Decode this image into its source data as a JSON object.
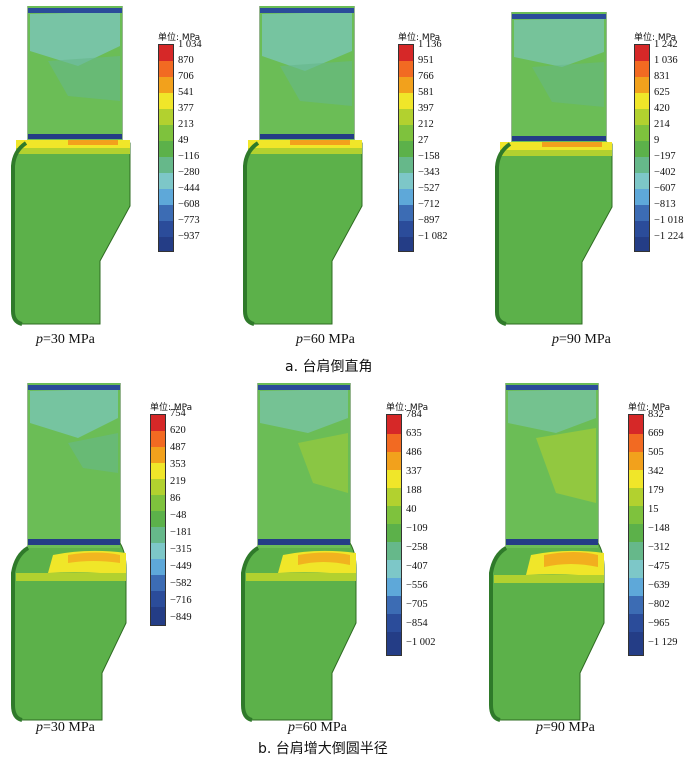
{
  "colors": [
    "#d62828",
    "#f26a22",
    "#f2a11c",
    "#f0e629",
    "#b2d12f",
    "#7ec23d",
    "#5cb14a",
    "#66b88a",
    "#7dc7c8",
    "#5ea8d9",
    "#3c6cb4",
    "#2b4c9a",
    "#243d86"
  ],
  "unit_label": "单位: MPa",
  "rows": [
    {
      "caption": "a. 台肩倒直角",
      "shape": "chamfer",
      "panels": [
        {
          "p_var": "p",
          "p_value": "=30 MPa",
          "ticks": [
            "1 034",
            "870",
            "706",
            "541",
            "377",
            "213",
            "49",
            "−116",
            "−280",
            "−444",
            "−608",
            "−773",
            "−937"
          ]
        },
        {
          "p_var": "p",
          "p_value": "=60 MPa",
          "ticks": [
            "1 136",
            "951",
            "766",
            "581",
            "397",
            "212",
            "27",
            "−158",
            "−343",
            "−527",
            "−712",
            "−897",
            "−1 082"
          ]
        },
        {
          "p_var": "p",
          "p_value": "=90 MPa",
          "ticks": [
            "1 242",
            "1 036",
            "831",
            "625",
            "420",
            "214",
            "9",
            "−197",
            "−402",
            "−607",
            "−813",
            "−1 018",
            "−1 224"
          ]
        }
      ]
    },
    {
      "caption": "b. 台肩增大倒圆半径",
      "shape": "fillet",
      "panels": [
        {
          "p_var": "p",
          "p_value": "=30 MPa",
          "ticks": [
            "754",
            "620",
            "487",
            "353",
            "219",
            "86",
            "−48",
            "−181",
            "−315",
            "−449",
            "−582",
            "−716",
            "−849"
          ]
        },
        {
          "p_var": "p",
          "p_value": "=60 MPa",
          "ticks": [
            "784",
            "635",
            "486",
            "337",
            "188",
            "40",
            "−109",
            "−258",
            "−407",
            "−556",
            "−705",
            "−854",
            "−1 002"
          ]
        },
        {
          "p_var": "p",
          "p_value": "=90 MPa",
          "ticks": [
            "832",
            "669",
            "505",
            "342",
            "179",
            "15",
            "−148",
            "−312",
            "−475",
            "−639",
            "−802",
            "−965",
            "−1 129"
          ]
        }
      ]
    }
  ]
}
